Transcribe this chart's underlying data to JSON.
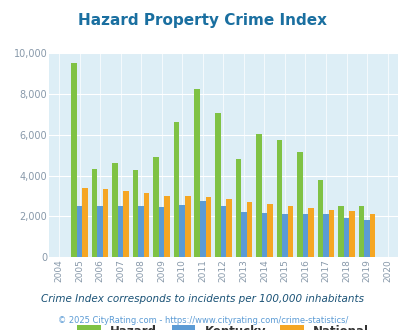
{
  "title": "Hazard Property Crime Index",
  "years": [
    2004,
    2005,
    2006,
    2007,
    2008,
    2009,
    2010,
    2011,
    2012,
    2013,
    2014,
    2015,
    2016,
    2017,
    2018,
    2019,
    2020
  ],
  "hazard": [
    null,
    9500,
    4300,
    4600,
    4250,
    4900,
    6600,
    8250,
    7050,
    4800,
    6050,
    5750,
    5150,
    3800,
    2500,
    2500,
    null
  ],
  "kentucky": [
    null,
    2500,
    2500,
    2500,
    2500,
    2450,
    2550,
    2750,
    2500,
    2200,
    2150,
    2100,
    2100,
    2100,
    1950,
    1850,
    null
  ],
  "national": [
    null,
    3400,
    3350,
    3250,
    3150,
    3000,
    3000,
    2950,
    2850,
    2700,
    2600,
    2500,
    2400,
    2300,
    2250,
    2100,
    null
  ],
  "hazard_color": "#7fc244",
  "kentucky_color": "#5b9bd5",
  "national_color": "#f5a623",
  "bg_color": "#ddeef6",
  "ylim": [
    0,
    10000
  ],
  "yticks": [
    0,
    2000,
    4000,
    6000,
    8000,
    10000
  ],
  "subtitle": "Crime Index corresponds to incidents per 100,000 inhabitants",
  "footer": "© 2025 CityRating.com - https://www.cityrating.com/crime-statistics/",
  "title_color": "#1a6fa0",
  "subtitle_color": "#1a5276",
  "footer_color": "#5b9bd5",
  "tick_color": "#8899aa"
}
